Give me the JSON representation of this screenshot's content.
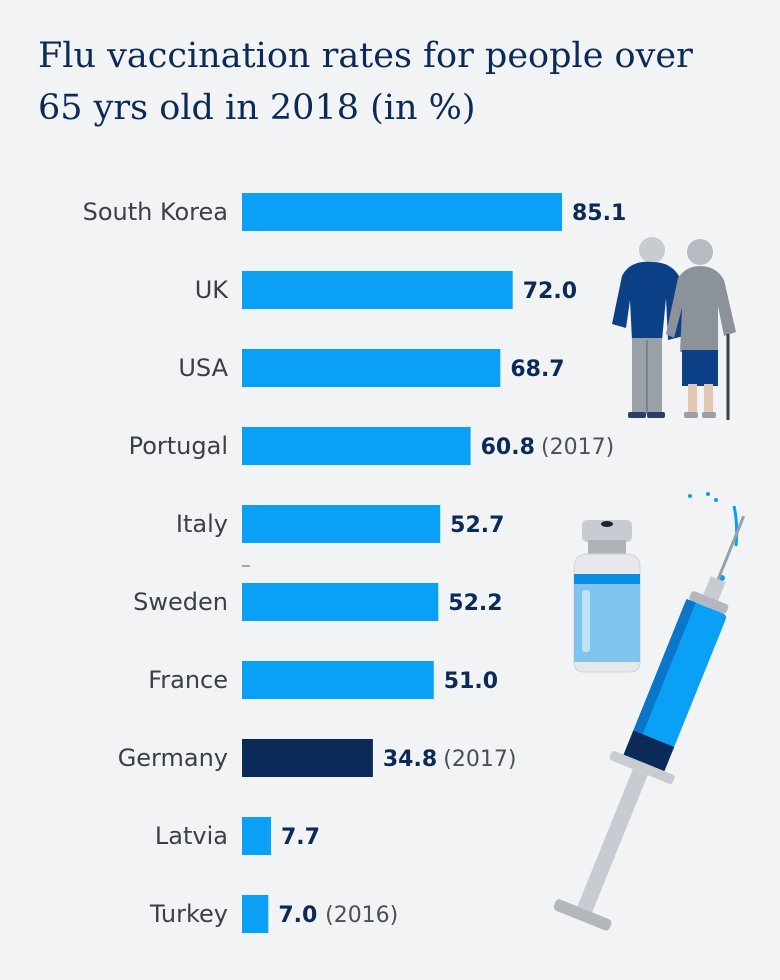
{
  "colors": {
    "background": "#f2f3f5",
    "bar": "#0aa0f6",
    "bar_highlight": "#0b2a57",
    "title": "#0b2a57",
    "value_label": "#0b2a57"
  },
  "illustrations": {
    "elderly": "elderly-couple-icon",
    "vial": "vaccine-vial-icon",
    "syringe": "syringe-icon"
  },
  "chart_data": {
    "type": "bar",
    "orientation": "horizontal",
    "title": "Flu vaccination rates for people over 65 yrs old in 2018 (in %)",
    "categories": [
      "South Korea",
      "UK",
      "USA",
      "Portugal",
      "Italy",
      "Sweden",
      "France",
      "Germany",
      "Latvia",
      "Turkey"
    ],
    "values": [
      85.1,
      72.0,
      68.7,
      60.8,
      52.7,
      52.2,
      51.0,
      34.8,
      7.7,
      7.0
    ],
    "value_labels": [
      "85.1",
      "72.0",
      "68.7",
      "60.8",
      "52.7",
      "52.2",
      "51.0",
      "34.8",
      "7.7",
      "7.0"
    ],
    "notes": [
      "",
      "",
      "",
      "(2017)",
      "",
      "",
      "",
      "(2017)",
      "",
      "(2016)"
    ],
    "highlight": "Germany",
    "xlim": [
      0,
      100
    ],
    "grid": false,
    "legend": "none"
  }
}
